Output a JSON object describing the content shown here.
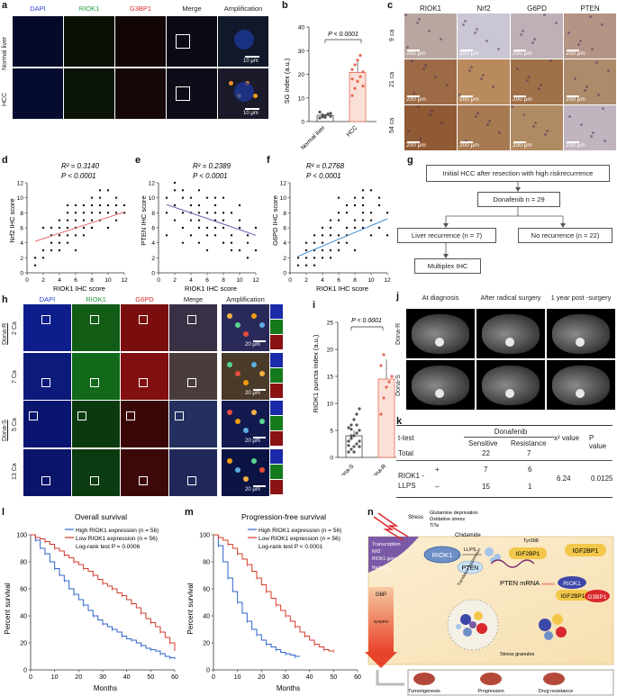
{
  "panels": {
    "a": "a",
    "b": "b",
    "c": "c",
    "d": "d",
    "e": "e",
    "f": "f",
    "g": "g",
    "h": "h",
    "i": "i",
    "j": "j",
    "k": "k",
    "l": "l",
    "m": "m",
    "n": "n"
  },
  "a": {
    "columns": [
      "DAPI",
      "RIOK1",
      "G3BP1",
      "Merge",
      "Amplification"
    ],
    "column_colors": [
      "#2b3fd6",
      "#1f9d3a",
      "#d9282b",
      "#222222",
      "#222222"
    ],
    "rows": [
      "Normal liver",
      "HCC"
    ],
    "scale": "10 μm"
  },
  "b": {
    "ylabel": "SG index (a.u.)",
    "pvalue": "P < 0.0001",
    "ticks": [
      "0",
      "10",
      "20",
      "30",
      "40"
    ]
  },
  "c": {
    "columns": [
      "RIOK1",
      "Nrf2",
      "G6PD",
      "PTEN"
    ],
    "rows": [
      "9 ca",
      "21 ca",
      "54 ca"
    ],
    "scale": "200 μm"
  },
  "d": {
    "r2": "R² = 0.3140",
    "p": "P < 0.0001",
    "ylabel": "Nrf2 IHC score",
    "xlabel": "RIOK1 IHC score"
  },
  "e": {
    "r2": "R² = 0.2389",
    "p": "P < 0.0001",
    "ylabel": "PTEN IHC score",
    "xlabel": "RIOK1 IHC score"
  },
  "f": {
    "r2": "R² = 0.2768",
    "p": "P < 0.0001",
    "ylabel": "G6PD IHC score",
    "xlabel": "RIOK1 IHC score"
  },
  "g": {
    "top": "Initial HCC after resection with high riskrecurrence",
    "mid": "Donafenib n = 29",
    "left": "Liver recurrence (n = 7)",
    "right": "No recurrence (n = 22)",
    "bottom": "Multiplex IHC"
  },
  "h": {
    "columns": [
      "DAPI",
      "RIOK1",
      "G6PD",
      "Merge",
      "Amplification"
    ],
    "column_colors": [
      "#2b3fd6",
      "#1f9d3a",
      "#d9282b",
      "#222222",
      "#222222"
    ],
    "groups": [
      "Dona-R",
      "Dona-S"
    ],
    "rows": [
      "2 Ca",
      "7 Ca",
      "5 Ca",
      "13 Ca"
    ],
    "scale": "20 μm"
  },
  "i": {
    "ylabel": "RIOK1 puncta index (a.u.)",
    "pvalue": "P < 0.0001",
    "ticks": [
      "0",
      "5",
      "10",
      "15",
      "20",
      "25"
    ]
  },
  "j": {
    "columns": [
      "At diagnosis",
      "After radical surgery",
      "1 year post -surgery"
    ],
    "rows": [
      "Dona-R",
      "Dona-S"
    ]
  },
  "k": {
    "header_test": "t-test",
    "header_drug": "Donafenib",
    "header_sensitive": "Sensitive",
    "header_resistance": "Resistance",
    "header_chi": "x² value",
    "header_p": "P value",
    "total_label": "Total",
    "total_s": "22",
    "total_r": "7",
    "row_label": "RIOK1 - LLPS",
    "plus": "+",
    "minus": "–",
    "plus_s": "7",
    "plus_r": "6",
    "minus_s": "15",
    "minus_r": "1",
    "chi": "6.24",
    "p": "0.0125"
  },
  "l": {
    "title": "Overall survival",
    "legend_high": "High RIOK1 expression (n = 56)",
    "legend_low": "Low RIOK1 expression (n = 56)",
    "logrank": "Log-rank test P = 0.0006",
    "ylabel": "Percent survival",
    "xlabel": "Months"
  },
  "m": {
    "title": "Progression-free survival",
    "legend_high": "High RIOK1 expression (n = 56)",
    "legend_low": "Low RIOK1 expression (n = 56)",
    "logrank": "Log-rank test P < 0.0001",
    "ylabel": "Percent survival",
    "xlabel": "Months"
  },
  "n": {
    "stress": "Stress",
    "stressors": [
      "Glutamine deprivation",
      "Oxidative stress",
      "TiTa"
    ],
    "chidamide": "Chidamide",
    "transcription": "Transcription",
    "nrf2": "Nrf2",
    "riok1_gene": "RIOK1 gene",
    "nucleus": "Nucleus",
    "llps": "LLPS",
    "riok1": "RIOK1",
    "tyr": "Tyr398",
    "igf": "IGF2BP1",
    "g3bp1": "G3BP1",
    "pten": "PTEN",
    "pten_mrna": "PTEN mRNA",
    "aaaaa": "AAAAA",
    "translation": "Translation suppression",
    "g6p": "G6P",
    "nadph": "NADPH",
    "stress_granules": "Stress granules",
    "outcomes": [
      "Tumorigenesis",
      "Progression",
      "Drug resistance"
    ]
  },
  "chart_data": [
    {
      "type": "bar",
      "panel": "b",
      "categories": [
        "Normal liver",
        "HCC"
      ],
      "values": [
        2.6,
        20.8
      ],
      "ylim": [
        0,
        40
      ],
      "points": [
        [
          1.5,
          2,
          2.5,
          3,
          3.5,
          4,
          2.8,
          1.8,
          3.2,
          2.2
        ],
        [
          11,
          14,
          17,
          19,
          21,
          22,
          24,
          26,
          28,
          15,
          18
        ]
      ]
    },
    {
      "type": "scatter",
      "panel": "d",
      "xlim": [
        0,
        12
      ],
      "ylim": [
        0,
        12
      ],
      "fit": [
        [
          1,
          4.2
        ],
        [
          12,
          8.1
        ]
      ],
      "x": [
        1,
        2,
        2,
        3,
        3,
        3,
        4,
        4,
        4,
        4,
        5,
        5,
        5,
        5,
        5,
        6,
        6,
        6,
        6,
        7,
        7,
        7,
        7,
        8,
        8,
        8,
        8,
        8,
        9,
        9,
        9,
        9,
        10,
        10,
        10,
        11,
        11,
        11,
        12,
        12,
        2,
        3,
        4,
        6,
        7,
        9,
        10,
        11,
        1,
        5,
        6,
        8
      ],
      "y": [
        1,
        3,
        2,
        4,
        3,
        5,
        5,
        4,
        6,
        3,
        6,
        5,
        7,
        4,
        8,
        7,
        6,
        5,
        9,
        7,
        6,
        8,
        9,
        8,
        7,
        9,
        10,
        6,
        8,
        9,
        10,
        7,
        8,
        11,
        6,
        9,
        7,
        10,
        8,
        9,
        6,
        6,
        7,
        8,
        5,
        11,
        9,
        8,
        2,
        9,
        3,
        6
      ]
    },
    {
      "type": "scatter",
      "panel": "e",
      "xlim": [
        0,
        12
      ],
      "ylim": [
        0,
        12
      ],
      "fit": [
        [
          1,
          9.1
        ],
        [
          12,
          5.0
        ]
      ],
      "x": [
        1,
        1,
        2,
        2,
        2,
        3,
        3,
        3,
        4,
        4,
        4,
        4,
        5,
        5,
        5,
        5,
        6,
        6,
        6,
        6,
        7,
        7,
        7,
        7,
        8,
        8,
        8,
        8,
        9,
        9,
        9,
        10,
        10,
        10,
        11,
        11,
        11,
        12,
        12,
        2,
        3,
        4,
        5,
        6,
        7,
        8,
        9,
        10,
        1,
        3,
        5,
        7
      ],
      "y": [
        10,
        8,
        9,
        11,
        7,
        10,
        8,
        6,
        9,
        7,
        8,
        10,
        6,
        9,
        8,
        7,
        8,
        10,
        5,
        6,
        7,
        9,
        5,
        6,
        8,
        6,
        4,
        7,
        8,
        5,
        4,
        6,
        3,
        7,
        2,
        5,
        4,
        3,
        6,
        12,
        11,
        5,
        11,
        3,
        8,
        10,
        3,
        9,
        5,
        4,
        4,
        10
      ]
    },
    {
      "type": "scatter",
      "panel": "f",
      "xlim": [
        0,
        12
      ],
      "ylim": [
        0,
        12
      ],
      "fit": [
        [
          1,
          2.2
        ],
        [
          12,
          7.2
        ]
      ],
      "x": [
        1,
        1,
        2,
        2,
        2,
        3,
        3,
        3,
        4,
        4,
        4,
        4,
        5,
        5,
        5,
        5,
        6,
        6,
        6,
        6,
        7,
        7,
        7,
        7,
        8,
        8,
        8,
        8,
        9,
        9,
        9,
        9,
        10,
        10,
        10,
        11,
        11,
        11,
        12,
        12,
        2,
        3,
        4,
        5,
        6,
        7,
        8,
        9,
        10,
        3,
        6,
        9
      ],
      "y": [
        1,
        2,
        1,
        3,
        2,
        1,
        4,
        3,
        2,
        5,
        3,
        4,
        6,
        2,
        5,
        3,
        7,
        3,
        5,
        4,
        6,
        8,
        4,
        5,
        9,
        7,
        10,
        6,
        8,
        10,
        6,
        9,
        11,
        7,
        8,
        9,
        6,
        10,
        8,
        5,
        4,
        5,
        6,
        7,
        8,
        9,
        3,
        11,
        5,
        2,
        10,
        7
      ]
    },
    {
      "type": "bar",
      "panel": "i",
      "categories": [
        "Dona-S",
        "Dona-R"
      ],
      "values": [
        4,
        14.5
      ],
      "ylim": [
        0,
        25
      ],
      "points": [
        [
          1,
          1.5,
          2,
          2.5,
          3,
          3,
          3.5,
          4,
          4.5,
          5,
          5.5,
          6,
          7,
          8,
          2,
          3,
          4,
          1,
          6,
          9,
          2.2,
          5.2
        ],
        [
          8,
          11,
          13,
          14,
          15,
          17,
          19
        ]
      ]
    },
    {
      "type": "line",
      "panel": "l",
      "xlim": [
        0,
        60
      ],
      "ylim": [
        0,
        100
      ],
      "series": [
        {
          "name": "High RIOK1 expression (n = 56)",
          "color": "#2d63c8",
          "x": [
            0,
            2,
            4,
            6,
            8,
            10,
            12,
            14,
            16,
            18,
            20,
            22,
            24,
            26,
            28,
            30,
            32,
            34,
            36,
            38,
            40,
            42,
            44,
            46,
            48,
            50,
            52,
            54,
            56,
            58,
            60
          ],
          "y": [
            100,
            96,
            90,
            86,
            80,
            75,
            70,
            66,
            60,
            56,
            52,
            48,
            44,
            40,
            37,
            34,
            32,
            30,
            28,
            25,
            23,
            22,
            20,
            18,
            16,
            15,
            14,
            12,
            10,
            9,
            8
          ]
        },
        {
          "name": "Low RIOK1 expression (n = 56)",
          "color": "#d43a2c",
          "x": [
            0,
            2,
            4,
            6,
            8,
            10,
            12,
            14,
            16,
            18,
            20,
            22,
            24,
            26,
            28,
            30,
            32,
            34,
            36,
            38,
            40,
            42,
            44,
            46,
            48,
            50,
            52,
            54,
            56,
            58,
            60
          ],
          "y": [
            100,
            98,
            97,
            95,
            93,
            90,
            88,
            85,
            83,
            80,
            78,
            75,
            73,
            70,
            67,
            64,
            62,
            60,
            57,
            55,
            52,
            49,
            46,
            42,
            38,
            35,
            32,
            28,
            24,
            20,
            14
          ]
        }
      ]
    },
    {
      "type": "line",
      "panel": "m",
      "xlim": [
        0,
        60
      ],
      "ylim": [
        0,
        100
      ],
      "series": [
        {
          "name": "High RIOK1 expression (n = 56)",
          "color": "#2d63c8",
          "x": [
            0,
            2,
            4,
            6,
            8,
            10,
            12,
            14,
            16,
            18,
            20,
            22,
            24,
            26,
            28,
            30,
            32,
            34,
            36
          ],
          "y": [
            100,
            92,
            80,
            68,
            58,
            50,
            42,
            36,
            30,
            26,
            22,
            19,
            17,
            15,
            13,
            12,
            11,
            10,
            10
          ]
        },
        {
          "name": "Low RIOK1 expression (n = 56)",
          "color": "#d43a2c",
          "x": [
            0,
            2,
            4,
            6,
            8,
            10,
            12,
            14,
            16,
            18,
            20,
            22,
            24,
            26,
            28,
            30,
            32,
            34,
            36,
            38,
            40,
            42,
            44,
            46,
            48,
            50
          ],
          "y": [
            100,
            98,
            96,
            93,
            90,
            86,
            82,
            78,
            73,
            68,
            63,
            58,
            53,
            48,
            44,
            40,
            36,
            32,
            28,
            25,
            22,
            19,
            17,
            15,
            14,
            14
          ]
        }
      ]
    }
  ]
}
